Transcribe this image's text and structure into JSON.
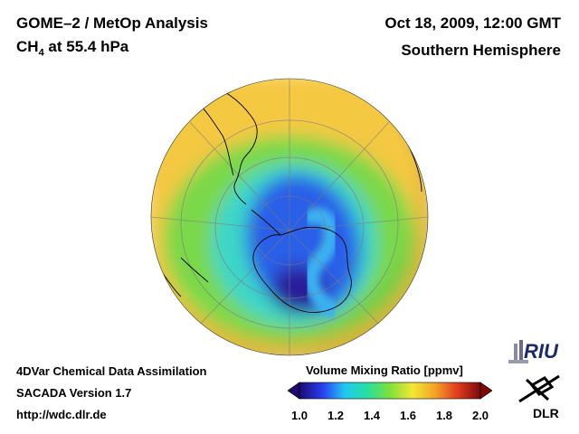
{
  "header": {
    "title": "GOME–2 / MetOp Analysis",
    "species": "CH",
    "species_sub": "4",
    "level": "at 55.4 hPa",
    "datetime": "Oct 18, 2009, 12:00 GMT",
    "hemisphere": "Southern Hemisphere"
  },
  "footer": {
    "line1": "4DVar Chemical Data Assimilation",
    "line2": "SACADA Version 1.7",
    "line3": "http://wdc.dlr.de"
  },
  "colorbar": {
    "title": "Volume Mixing Ratio [ppmv]",
    "min": 1.0,
    "max": 2.0,
    "ticks": [
      "1.0",
      "1.2",
      "1.4",
      "1.6",
      "1.8",
      "2.0"
    ],
    "colors": [
      "#1a0a6e",
      "#2b3cf0",
      "#22c8f2",
      "#26e0a0",
      "#7fe03a",
      "#f2e833",
      "#f2a226",
      "#e03a1e",
      "#7a0a0a"
    ]
  },
  "logos": {
    "riu": "RIU",
    "dlr": "DLR"
  },
  "map": {
    "projection": "orthographic-south-polar",
    "field_colors": {
      "outer": "#f5c842",
      "ring": "#7ad84a",
      "mid": "#3cd6c8",
      "vortex": "#2c5ee8",
      "core": "#2a1a9a",
      "filament": "#3ab0f0"
    }
  }
}
